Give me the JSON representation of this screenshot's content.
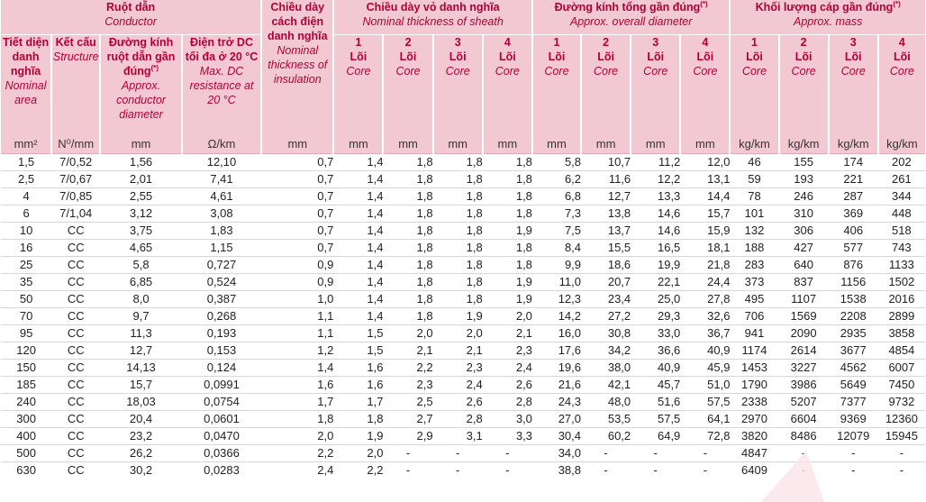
{
  "header": {
    "conductor": {
      "vi": "Ruột dẫn",
      "en": "Conductor"
    },
    "insulation": {
      "vi": "Chiều dày cách điện danh nghĩa",
      "en": "Nominal thickness of insulation"
    },
    "sheath": {
      "vi": "Chiều dày vỏ danh nghĩa",
      "en": "Nominal thickness of sheath"
    },
    "diameter": {
      "vi": "Đường kính tổng gần đúng",
      "sup": "(*)",
      "en": "Approx. overall diameter"
    },
    "mass": {
      "vi": "Khối lượng cáp gần đúng",
      "sup": "(*)",
      "en": "Approx. mass"
    },
    "area": {
      "vi": "Tiết diện danh nghĩa",
      "en": "Nominal area"
    },
    "structure": {
      "vi": "Kết cấu",
      "en": "Structure"
    },
    "cond_dia": {
      "vi": "Đường kính ruột dẫn gần đúng",
      "sup": "(*)",
      "en": "Approx. conductor diameter"
    },
    "resistance": {
      "vi": "Điện trở DC tối đa ở 20 °C",
      "en": "Max. DC resistance at 20 °C"
    },
    "core_cols": [
      {
        "n": "1",
        "vi": "Lõi",
        "en": "Core"
      },
      {
        "n": "2",
        "vi": "Lõi",
        "en": "Core"
      },
      {
        "n": "3",
        "vi": "Lõi",
        "en": "Core"
      },
      {
        "n": "4",
        "vi": "Lõi",
        "en": "Core"
      }
    ],
    "units": [
      "mm²",
      "N⁰/mm",
      "mm",
      "Ω/km",
      "mm",
      "mm",
      "mm",
      "mm",
      "mm",
      "mm",
      "mm",
      "mm",
      "mm",
      "kg/km",
      "kg/km",
      "kg/km",
      "kg/km"
    ]
  },
  "rows": [
    [
      "1,5",
      "7/0,52",
      "1,56",
      "12,10",
      "0,7",
      "1,4",
      "1,8",
      "1,8",
      "1,8",
      "5,8",
      "10,7",
      "11,2",
      "12,0",
      "46",
      "155",
      "174",
      "202"
    ],
    [
      "2,5",
      "7/0,67",
      "2,01",
      "7,41",
      "0,7",
      "1,4",
      "1,8",
      "1,8",
      "1,8",
      "6,2",
      "11,6",
      "12,2",
      "13,1",
      "59",
      "193",
      "221",
      "261"
    ],
    [
      "4",
      "7/0,85",
      "2,55",
      "4,61",
      "0,7",
      "1,4",
      "1,8",
      "1,8",
      "1,8",
      "6,8",
      "12,7",
      "13,3",
      "14,4",
      "78",
      "246",
      "287",
      "344"
    ],
    [
      "6",
      "7/1,04",
      "3,12",
      "3,08",
      "0,7",
      "1,4",
      "1,8",
      "1,8",
      "1,8",
      "7,3",
      "13,8",
      "14,6",
      "15,7",
      "101",
      "310",
      "369",
      "448"
    ],
    [
      "10",
      "CC",
      "3,75",
      "1,83",
      "0,7",
      "1,4",
      "1,8",
      "1,8",
      "1,9",
      "7,5",
      "13,7",
      "14,6",
      "15,9",
      "132",
      "306",
      "406",
      "518"
    ],
    [
      "16",
      "CC",
      "4,65",
      "1,15",
      "0,7",
      "1,4",
      "1,8",
      "1,8",
      "1,8",
      "8,4",
      "15,5",
      "16,5",
      "18,1",
      "188",
      "427",
      "577",
      "743"
    ],
    [
      "25",
      "CC",
      "5,8",
      "0,727",
      "0,9",
      "1,4",
      "1,8",
      "1,8",
      "1,8",
      "9,9",
      "18,6",
      "19,9",
      "21,8",
      "283",
      "640",
      "876",
      "1133"
    ],
    [
      "35",
      "CC",
      "6,85",
      "0,524",
      "0,9",
      "1,4",
      "1,8",
      "1,8",
      "1,9",
      "11,0",
      "20,7",
      "22,1",
      "24,4",
      "373",
      "837",
      "1156",
      "1502"
    ],
    [
      "50",
      "CC",
      "8,0",
      "0,387",
      "1,0",
      "1,4",
      "1,8",
      "1,8",
      "1,9",
      "12,3",
      "23,4",
      "25,0",
      "27,8",
      "495",
      "1107",
      "1538",
      "2016"
    ],
    [
      "70",
      "CC",
      "9,7",
      "0,268",
      "1,1",
      "1,4",
      "1,8",
      "1,9",
      "2,0",
      "14,2",
      "27,2",
      "29,3",
      "32,6",
      "706",
      "1569",
      "2208",
      "2899"
    ],
    [
      "95",
      "CC",
      "11,3",
      "0,193",
      "1,1",
      "1,5",
      "2,0",
      "2,0",
      "2,1",
      "16,0",
      "30,8",
      "33,0",
      "36,7",
      "941",
      "2090",
      "2935",
      "3858"
    ],
    [
      "120",
      "CC",
      "12,7",
      "0,153",
      "1,2",
      "1,5",
      "2,1",
      "2,1",
      "2,3",
      "17,6",
      "34,2",
      "36,6",
      "40,9",
      "1174",
      "2614",
      "3677",
      "4854"
    ],
    [
      "150",
      "CC",
      "14,13",
      "0,124",
      "1,4",
      "1,6",
      "2,2",
      "2,3",
      "2,4",
      "19,6",
      "38,0",
      "40,9",
      "45,9",
      "1453",
      "3227",
      "4562",
      "6007"
    ],
    [
      "185",
      "CC",
      "15,7",
      "0,0991",
      "1,6",
      "1,6",
      "2,3",
      "2,4",
      "2,6",
      "21,6",
      "42,1",
      "45,7",
      "51,0",
      "1790",
      "3986",
      "5649",
      "7450"
    ],
    [
      "240",
      "CC",
      "18,03",
      "0,0754",
      "1,7",
      "1,7",
      "2,5",
      "2,6",
      "2,8",
      "24,3",
      "48,0",
      "51,6",
      "57,5",
      "2338",
      "5207",
      "7377",
      "9732"
    ],
    [
      "300",
      "CC",
      "20,4",
      "0,0601",
      "1,8",
      "1,8",
      "2,7",
      "2,8",
      "3,0",
      "27,0",
      "53,5",
      "57,5",
      "64,1",
      "2970",
      "6604",
      "9369",
      "12360"
    ],
    [
      "400",
      "CC",
      "23,2",
      "0,0470",
      "2,0",
      "1,9",
      "2,9",
      "3,1",
      "3,3",
      "30,4",
      "60,2",
      "64,9",
      "72,8",
      "3820",
      "8486",
      "12079",
      "15945"
    ],
    [
      "500",
      "CC",
      "26,2",
      "0,0366",
      "2,2",
      "2,0",
      "-",
      "-",
      "-",
      "34,0",
      "-",
      "-",
      "-",
      "4847",
      "-",
      "-",
      "-"
    ],
    [
      "630",
      "CC",
      "30,2",
      "0,0283",
      "2,4",
      "2,2",
      "-",
      "-",
      "-",
      "38,8",
      "-",
      "-",
      "-",
      "6409",
      "-",
      "-",
      "-"
    ]
  ]
}
